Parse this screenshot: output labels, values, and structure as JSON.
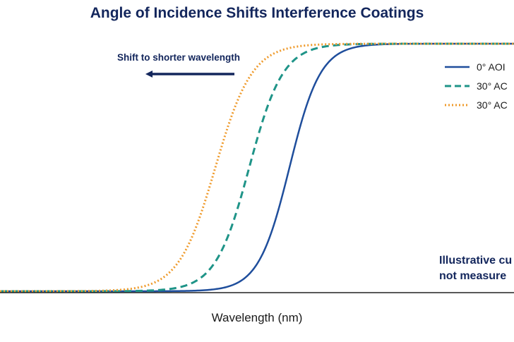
{
  "chart_data": {
    "type": "line",
    "title": "Angle of Incidence Shifts Interference Coatings",
    "xlabel": "Wavelength (nm)",
    "ylabel": "",
    "xlim": [
      0,
      728
    ],
    "ylim": [
      0,
      1
    ],
    "grid": false,
    "legend_placement": "top-right",
    "annotation": "Shift to shorter wavelength",
    "note_lines": [
      "Illustrative cu",
      "not measure"
    ],
    "series": [
      {
        "name": "0° AOI",
        "style": "solid",
        "color": "#1f4e9c",
        "center": 410,
        "width": 22
      },
      {
        "name": "30° AC",
        "style": "dashed",
        "color": "#1f9488",
        "center": 353,
        "width": 24
      },
      {
        "name": "30° AC",
        "style": "dotted",
        "color": "#ef9b2d",
        "center": 305,
        "width": 26
      }
    ]
  }
}
